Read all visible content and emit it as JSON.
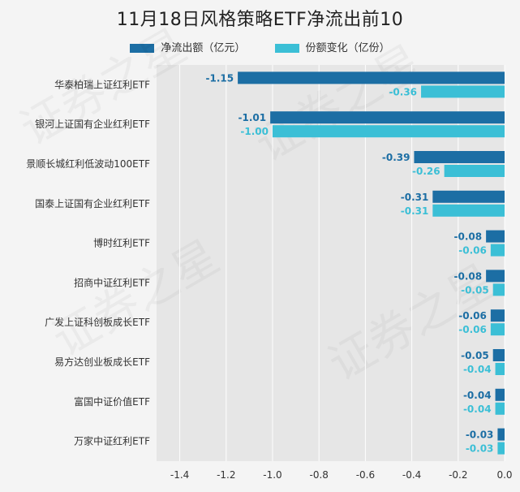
{
  "chart_data": {
    "type": "bar",
    "orientation": "horizontal",
    "title": "11月18日风格策略ETF净流出前10",
    "categories": [
      "华泰柏瑞上证红利ETF",
      "银河上证国有企业红利ETF",
      "景顺长城红利低波动100ETF",
      "国泰上证国有企业红利ETF",
      "博时红利ETF",
      "招商中证红利ETF",
      "广发上证科创板成长ETF",
      "易方达创业板成长ETF",
      "富国中证价值ETF",
      "万家中证红利ETF"
    ],
    "series": [
      {
        "name": "净流出额（亿元）",
        "color": "#1c6ea4",
        "values": [
          -1.15,
          -1.01,
          -0.39,
          -0.31,
          -0.08,
          -0.08,
          -0.06,
          -0.05,
          -0.04,
          -0.03
        ],
        "labels": [
          "-1.15",
          "-1.01",
          "-0.39",
          "-0.31",
          "-0.08",
          "-0.08",
          "-0.06",
          "-0.05",
          "-0.04",
          "-0.03"
        ]
      },
      {
        "name": "份额变化（亿份）",
        "color": "#3bbfd6",
        "values": [
          -0.36,
          -1.0,
          -0.26,
          -0.31,
          -0.06,
          -0.05,
          -0.06,
          -0.04,
          -0.04,
          -0.03
        ],
        "labels": [
          "-0.36",
          "-1.00",
          "-0.26",
          "-0.31",
          "-0.06",
          "-0.05",
          "-0.06",
          "-0.04",
          "-0.04",
          "-0.03"
        ]
      }
    ],
    "xlim": [
      -1.5,
      0.0
    ],
    "xticks": [
      -1.4,
      -1.2,
      -1.0,
      -0.8,
      -0.6,
      -0.4,
      -0.2,
      0.0
    ],
    "xtick_labels": [
      "-1.4",
      "-1.2",
      "-1.0",
      "-0.8",
      "-0.6",
      "-0.4",
      "-0.2",
      "0.0"
    ],
    "grid": true,
    "legend_position": "top-center"
  },
  "watermark": "证券之星"
}
